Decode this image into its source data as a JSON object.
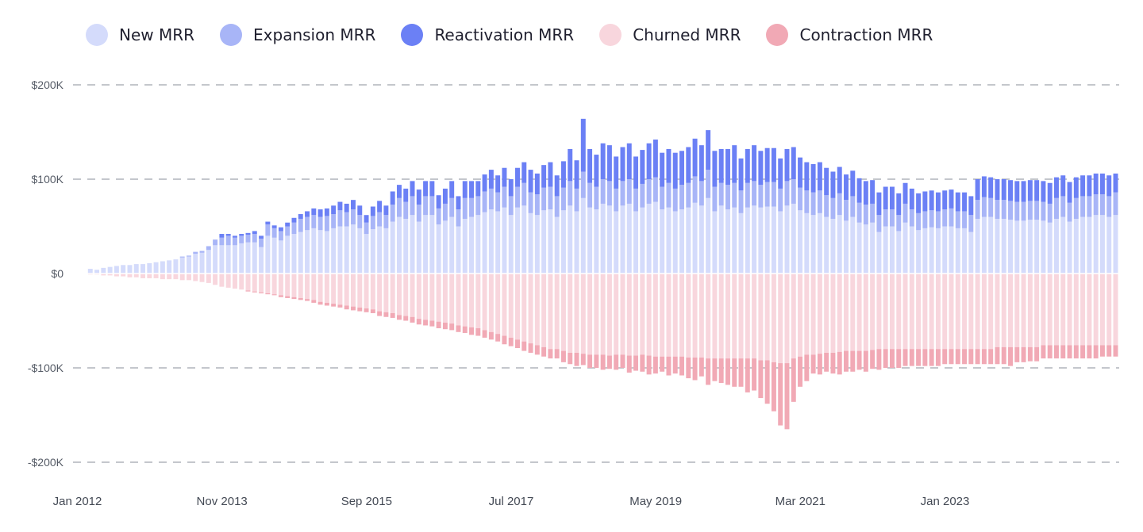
{
  "chart_data": {
    "type": "bar",
    "stacked": true,
    "series": [
      {
        "name": "New MRR",
        "color": "#d4dbfb",
        "key": "new"
      },
      {
        "name": "Expansion MRR",
        "color": "#a8b5f7",
        "key": "expansion"
      },
      {
        "name": "Reactivation MRR",
        "color": "#6b80f5",
        "key": "reactivation"
      },
      {
        "name": "Churned MRR",
        "color": "#f8d6dd",
        "key": "churned"
      },
      {
        "name": "Contraction MRR",
        "color": "#f1a9b5",
        "key": "contraction"
      }
    ],
    "y_ticks": [
      "$200K",
      "$100K",
      "$0",
      "-$100K",
      "-$200K"
    ],
    "y_tick_values": [
      200,
      100,
      0,
      -100,
      -200
    ],
    "ylim": [
      -200,
      200
    ],
    "y_unit": "K",
    "x_ticks": [
      "Jan 2012",
      "Nov 2013",
      "Sep 2015",
      "Jul 2017",
      "May 2019",
      "Mar 2021",
      "Jan 2023"
    ],
    "x_tick_indices": [
      0,
      22,
      44,
      66,
      88,
      110,
      132
    ],
    "grid": "horizontal-dashed",
    "legend_position": "top-left",
    "start_month": "Jan 2012",
    "data": {
      "new": [
        0,
        5,
        4,
        6,
        7,
        8,
        9,
        9,
        10,
        10,
        11,
        12,
        13,
        14,
        15,
        17,
        18,
        21,
        22,
        25,
        30,
        30,
        30,
        30,
        32,
        33,
        33,
        28,
        40,
        38,
        35,
        40,
        42,
        44,
        46,
        48,
        46,
        45,
        48,
        50,
        50,
        52,
        48,
        42,
        47,
        50,
        48,
        55,
        60,
        58,
        62,
        55,
        62,
        62,
        52,
        56,
        60,
        50,
        58,
        60,
        62,
        65,
        68,
        66,
        70,
        62,
        70,
        72,
        64,
        62,
        67,
        68,
        60,
        67,
        72,
        66,
        80,
        70,
        68,
        74,
        72,
        66,
        72,
        74,
        66,
        70,
        74,
        76,
        68,
        70,
        66,
        68,
        70,
        75,
        72,
        80,
        66,
        72,
        68,
        70,
        64,
        70,
        72,
        70,
        71,
        71,
        66,
        72,
        74,
        67,
        64,
        62,
        64,
        60,
        58,
        62,
        56,
        60,
        54,
        52,
        54,
        44,
        50,
        50,
        45,
        54,
        50,
        46,
        48,
        49,
        48,
        50,
        50,
        48,
        48,
        44,
        58,
        60,
        60,
        58,
        58,
        57,
        56,
        56,
        57,
        57,
        56,
        54,
        58,
        60,
        55,
        58,
        60,
        60,
        62,
        62,
        60,
        62
      ],
      "expansion": [
        0,
        0,
        0,
        0,
        0,
        0,
        0,
        0,
        0,
        0,
        0,
        0,
        0,
        0,
        0,
        1,
        1,
        2,
        2,
        4,
        6,
        8,
        10,
        8,
        8,
        8,
        9,
        9,
        12,
        10,
        10,
        10,
        12,
        14,
        14,
        14,
        14,
        16,
        15,
        17,
        15,
        16,
        14,
        12,
        14,
        15,
        14,
        18,
        20,
        18,
        20,
        18,
        20,
        20,
        17,
        18,
        20,
        18,
        22,
        20,
        20,
        22,
        22,
        20,
        22,
        20,
        22,
        24,
        22,
        22,
        24,
        24,
        22,
        24,
        26,
        24,
        28,
        26,
        24,
        26,
        26,
        24,
        26,
        26,
        24,
        25,
        26,
        26,
        24,
        26,
        24,
        26,
        26,
        28,
        26,
        30,
        26,
        24,
        26,
        26,
        24,
        26,
        26,
        24,
        26,
        26,
        24,
        26,
        26,
        24,
        24,
        24,
        24,
        23,
        22,
        23,
        22,
        22,
        21,
        21,
        20,
        18,
        18,
        18,
        17,
        20,
        18,
        18,
        18,
        18,
        18,
        18,
        19,
        18,
        18,
        18,
        20,
        21,
        20,
        20,
        20,
        20,
        20,
        20,
        20,
        20,
        20,
        20,
        22,
        22,
        20,
        22,
        22,
        22,
        22,
        22,
        22,
        24
      ],
      "reactivation": [
        0,
        0,
        0,
        0,
        0,
        0,
        0,
        0,
        0,
        0,
        0,
        0,
        0,
        0,
        0,
        0,
        0,
        0,
        0,
        0,
        0,
        4,
        2,
        2,
        2,
        2,
        3,
        3,
        3,
        3,
        4,
        4,
        5,
        5,
        6,
        7,
        8,
        8,
        9,
        9,
        9,
        10,
        10,
        8,
        10,
        12,
        10,
        14,
        14,
        14,
        16,
        16,
        16,
        16,
        14,
        16,
        18,
        14,
        18,
        18,
        16,
        18,
        20,
        18,
        20,
        18,
        20,
        22,
        24,
        22,
        24,
        26,
        22,
        28,
        34,
        30,
        56,
        36,
        34,
        38,
        38,
        34,
        36,
        38,
        34,
        36,
        38,
        40,
        36,
        36,
        38,
        36,
        38,
        40,
        38,
        42,
        38,
        36,
        38,
        40,
        34,
        36,
        38,
        36,
        36,
        36,
        32,
        34,
        34,
        32,
        30,
        30,
        30,
        29,
        28,
        28,
        27,
        27,
        26,
        25,
        25,
        24,
        24,
        24,
        23,
        22,
        22,
        21,
        21,
        21,
        20,
        20,
        20,
        20,
        20,
        20,
        22,
        22,
        22,
        22,
        22,
        22,
        22,
        22,
        22,
        22,
        22,
        22,
        22,
        22,
        22,
        22,
        22,
        22,
        22,
        22,
        22,
        20
      ],
      "churned": [
        0,
        -1,
        -1,
        -2,
        -2,
        -3,
        -3,
        -4,
        -4,
        -5,
        -5,
        -5,
        -6,
        -6,
        -6,
        -7,
        -7,
        -8,
        -9,
        -10,
        -12,
        -14,
        -15,
        -16,
        -17,
        -18,
        -19,
        -20,
        -21,
        -22,
        -23,
        -24,
        -25,
        -26,
        -27,
        -28,
        -30,
        -31,
        -32,
        -33,
        -34,
        -35,
        -36,
        -37,
        -38,
        -40,
        -41,
        -42,
        -44,
        -45,
        -46,
        -48,
        -49,
        -50,
        -51,
        -52,
        -53,
        -55,
        -56,
        -57,
        -58,
        -60,
        -62,
        -64,
        -66,
        -68,
        -70,
        -72,
        -74,
        -76,
        -78,
        -80,
        -80,
        -82,
        -84,
        -84,
        -85,
        -86,
        -86,
        -86,
        -87,
        -86,
        -86,
        -87,
        -87,
        -86,
        -87,
        -88,
        -88,
        -88,
        -88,
        -88,
        -89,
        -89,
        -89,
        -90,
        -90,
        -90,
        -90,
        -90,
        -90,
        -90,
        -90,
        -92,
        -92,
        -94,
        -95,
        -95,
        -90,
        -88,
        -86,
        -86,
        -85,
        -84,
        -84,
        -83,
        -82,
        -82,
        -82,
        -82,
        -81,
        -80,
        -80,
        -80,
        -80,
        -80,
        -80,
        -80,
        -80,
        -80,
        -80,
        -80,
        -80,
        -80,
        -80,
        -80,
        -80,
        -80,
        -80,
        -78,
        -78,
        -78,
        -78,
        -78,
        -78,
        -78,
        -76,
        -76,
        -76,
        -76,
        -76,
        -76,
        -76,
        -76,
        -76,
        -76,
        -76,
        -76
      ],
      "contraction": [
        0,
        0,
        0,
        0,
        0,
        0,
        0,
        0,
        0,
        0,
        0,
        0,
        0,
        0,
        0,
        0,
        0,
        0,
        0,
        0,
        0,
        0,
        0,
        0,
        0,
        -1,
        -1,
        -1,
        -1,
        -1,
        -2,
        -2,
        -2,
        -2,
        -2,
        -3,
        -3,
        -3,
        -3,
        -3,
        -4,
        -4,
        -4,
        -4,
        -4,
        -5,
        -5,
        -5,
        -5,
        -5,
        -6,
        -6,
        -6,
        -6,
        -7,
        -7,
        -7,
        -7,
        -7,
        -8,
        -8,
        -8,
        -8,
        -8,
        -9,
        -9,
        -9,
        -10,
        -10,
        -10,
        -10,
        -10,
        -10,
        -12,
        -12,
        -14,
        -12,
        -14,
        -14,
        -16,
        -14,
        -16,
        -14,
        -18,
        -16,
        -18,
        -20,
        -18,
        -16,
        -20,
        -18,
        -20,
        -22,
        -24,
        -20,
        -28,
        -24,
        -26,
        -28,
        -30,
        -30,
        -36,
        -34,
        -40,
        -46,
        -52,
        -66,
        -70,
        -46,
        -32,
        -28,
        -20,
        -22,
        -20,
        -22,
        -24,
        -22,
        -22,
        -20,
        -22,
        -20,
        -22,
        -20,
        -20,
        -20,
        -18,
        -18,
        -18,
        -18,
        -18,
        -18,
        -16,
        -16,
        -16,
        -16,
        -16,
        -16,
        -16,
        -16,
        -18,
        -18,
        -20,
        -16,
        -16,
        -15,
        -15,
        -14,
        -14,
        -14,
        -14,
        -14,
        -14,
        -14,
        -14,
        -14,
        -12,
        -12,
        -12,
        -12,
        -12,
        -10,
        -10
      ]
    }
  }
}
